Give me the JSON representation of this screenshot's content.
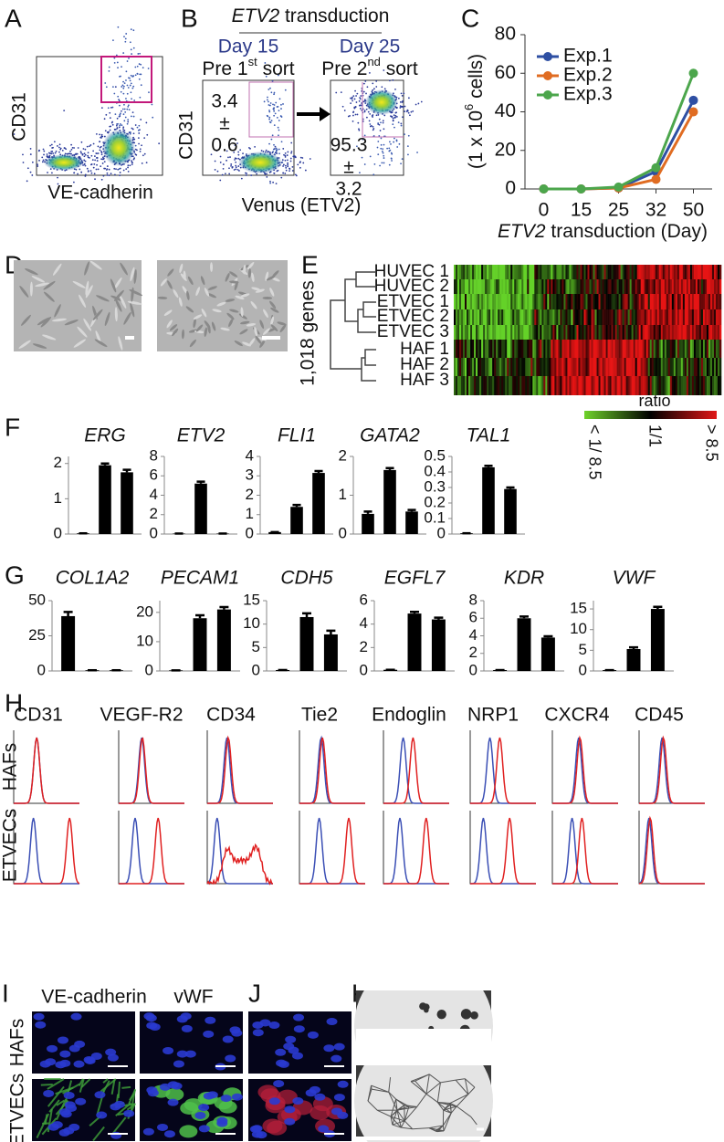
{
  "panels": {
    "A": {
      "label": "A",
      "y_label": "CD31",
      "x_label": "VE-cadherin"
    },
    "B": {
      "label": "B",
      "title_gene": "ETV2",
      "title_rest": " transduction",
      "left": {
        "day": "Day 15",
        "sort": [
          "Pre 1",
          "st",
          " sort"
        ],
        "mean": 3.4,
        "pm": "±",
        "sd": 0.6
      },
      "right": {
        "day": "Day 25",
        "sort": [
          "Pre 2",
          "nd",
          " sort"
        ],
        "mean": 95.3,
        "pm": "±",
        "sd": 3.2
      },
      "y_label": "CD31",
      "x_label": "Venus (ETV2)"
    },
    "C": {
      "label": "C",
      "chart": {
        "type": "line",
        "y_label": [
          "(1 x 10",
          "6",
          " cells)"
        ],
        "x_label": [
          "ETV2",
          " transduction (Day)"
        ],
        "categories": [
          "0",
          "15",
          "25",
          "32",
          "50"
        ],
        "ylim": [
          0,
          80
        ],
        "yticks": [
          0,
          20,
          40,
          60,
          80
        ],
        "series": [
          {
            "name": "Exp.1",
            "color": "#2e4fa3",
            "values": [
              0,
              0,
              0.5,
              9,
              46
            ]
          },
          {
            "name": "Exp.2",
            "color": "#e06c22",
            "values": [
              0,
              0,
              0.5,
              5,
              40
            ]
          },
          {
            "name": "Exp.3",
            "color": "#4ca64c",
            "values": [
              0,
              0,
              1,
              11,
              60
            ]
          }
        ]
      }
    },
    "D": {
      "label": "D"
    },
    "E": {
      "label": "E",
      "samples": [
        "HUVEC 1",
        "HUVEC 2",
        "ETVEC 1",
        "ETVEC 2",
        "ETVEC 3",
        "HAF 1",
        "HAF 2",
        "HAF 3"
      ],
      "genes_label": "1,018 genes",
      "legend_title": "ratio",
      "legend_ticks": [
        "< 1/ 8.5",
        "1/1",
        "> 8.5"
      ]
    },
    "bar_colors": [
      "#000000",
      "#d6246a",
      "#2b3a9e"
    ],
    "F": {
      "label": "F",
      "charts": [
        {
          "type": "bar",
          "title": "ERG",
          "ylim": [
            0,
            2.2
          ],
          "yticks": [
            0,
            1,
            2
          ],
          "values": [
            0.02,
            1.95,
            1.75
          ],
          "errors": [
            0,
            0.05,
            0.07
          ]
        },
        {
          "type": "bar",
          "title": "ETV2",
          "ylim": [
            0,
            8
          ],
          "yticks": [
            0,
            2,
            4,
            6,
            8
          ],
          "values": [
            0.05,
            5.2,
            0.05
          ],
          "errors": [
            0,
            0.2,
            0
          ]
        },
        {
          "type": "bar",
          "title": "FLI1",
          "ylim": [
            0,
            4
          ],
          "yticks": [
            0,
            1,
            2,
            3,
            4
          ],
          "values": [
            0.1,
            1.4,
            3.15
          ],
          "errors": [
            0,
            0.1,
            0.1
          ]
        },
        {
          "type": "bar",
          "title": "GATA2",
          "ylim": [
            0,
            2
          ],
          "yticks": [
            0,
            1,
            2
          ],
          "values": [
            0.52,
            1.65,
            0.58
          ],
          "errors": [
            0.06,
            0.05,
            0.04
          ]
        },
        {
          "type": "bar",
          "title": "TAL1",
          "ylim": [
            0,
            0.5
          ],
          "yticks": [
            0,
            0.1,
            0.2,
            0.3,
            0.4,
            0.5
          ],
          "values": [
            0.005,
            0.43,
            0.29
          ],
          "errors": [
            0,
            0.01,
            0.01
          ]
        }
      ]
    },
    "G": {
      "label": "G",
      "charts": [
        {
          "type": "bar",
          "title": "COL1A2",
          "ylim": [
            0,
            50
          ],
          "yticks": [
            0,
            25,
            50
          ],
          "values": [
            39,
            0.5,
            0.5
          ],
          "errors": [
            3,
            0,
            0
          ]
        },
        {
          "type": "bar",
          "title": "PECAM1",
          "ylim": [
            0,
            24
          ],
          "yticks": [
            0,
            10,
            20
          ],
          "values": [
            0.2,
            18,
            21
          ],
          "errors": [
            0,
            1,
            0.8
          ]
        },
        {
          "type": "bar",
          "title": "CDH5",
          "ylim": [
            0,
            15
          ],
          "yticks": [
            0,
            5,
            10,
            15
          ],
          "values": [
            0.2,
            11.5,
            7.8
          ],
          "errors": [
            0,
            0.8,
            0.8
          ]
        },
        {
          "type": "bar",
          "title": "EGFL7",
          "ylim": [
            0,
            6
          ],
          "yticks": [
            0,
            2,
            4,
            6
          ],
          "values": [
            0.1,
            4.9,
            4.4
          ],
          "errors": [
            0,
            0.15,
            0.15
          ]
        },
        {
          "type": "bar",
          "title": "KDR",
          "ylim": [
            0,
            8
          ],
          "yticks": [
            0,
            2,
            4,
            6,
            8
          ],
          "values": [
            0.1,
            6,
            3.8
          ],
          "errors": [
            0,
            0.2,
            0.15
          ]
        },
        {
          "type": "bar",
          "title": "VWF",
          "ylim": [
            0,
            17
          ],
          "yticks": [
            0,
            5,
            10,
            15
          ],
          "values": [
            0.2,
            5.3,
            15
          ],
          "errors": [
            0,
            0.4,
            0.5
          ]
        }
      ]
    },
    "H": {
      "label": "H",
      "markers": [
        "CD31",
        "VEGF-R2",
        "CD34",
        "Tie2",
        "Endoglin",
        "NRP1",
        "CXCR4",
        "CD45"
      ],
      "rows": [
        "HAFs",
        "ETVECs"
      ]
    },
    "I": {
      "label": "I",
      "columns": [
        "VE-cadherin",
        "vWF"
      ],
      "rows": [
        "HAFs",
        "ETVECs"
      ]
    },
    "J": {
      "label": "J"
    },
    "K": {
      "label": "K"
    }
  }
}
